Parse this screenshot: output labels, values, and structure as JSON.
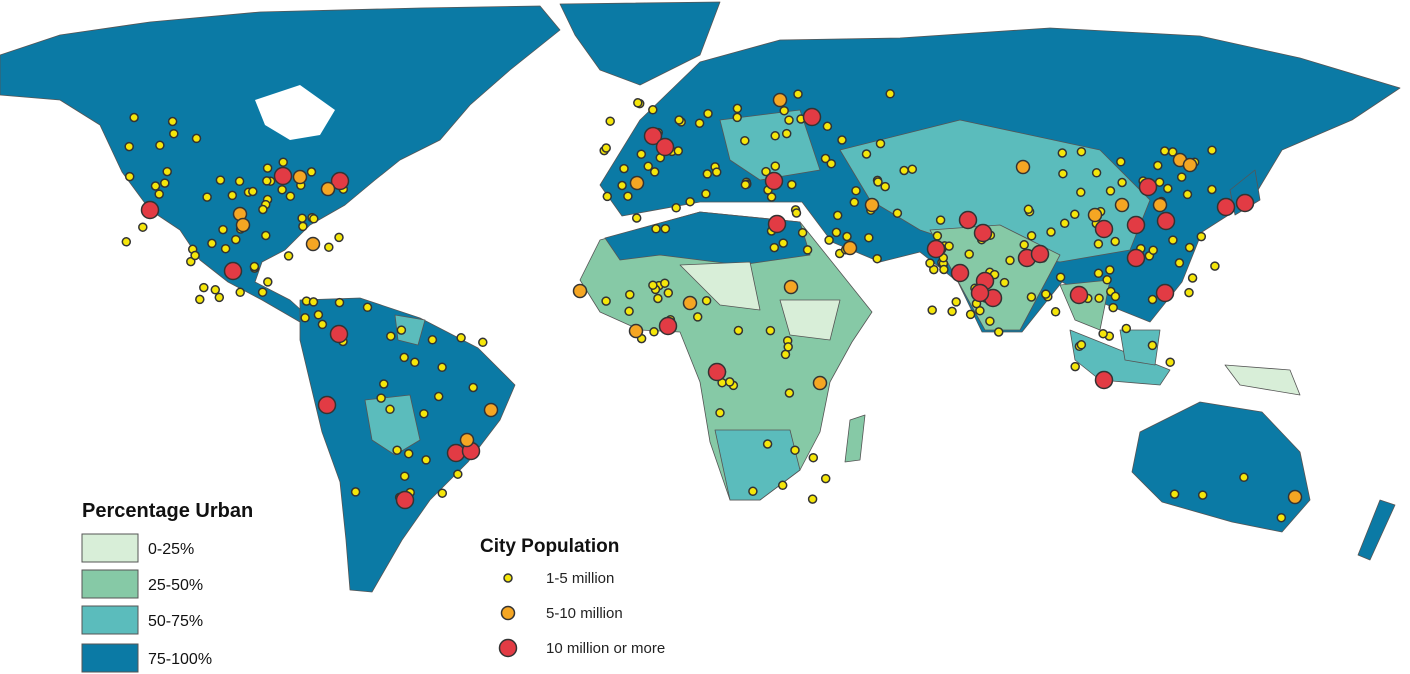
{
  "legend_urban": {
    "title": "Percentage Urban",
    "items": [
      "0-25%",
      "25-50%",
      "50-75%",
      "75-100%"
    ]
  },
  "legend_city": {
    "title": "City Population",
    "items": [
      "1-5 million",
      "5-10 million",
      "10 million or more"
    ]
  }
}
